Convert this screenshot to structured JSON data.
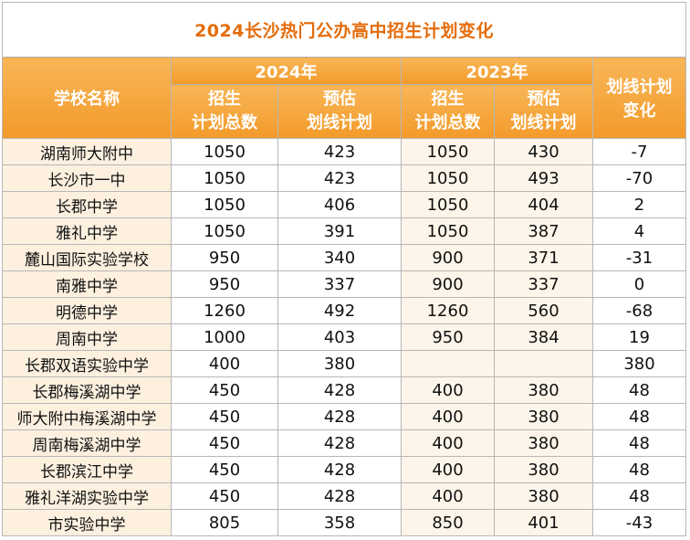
{
  "title": "2024长沙热门公办高中招生计划变化",
  "headers": {
    "school": "学校名称",
    "year_2024": "2024年",
    "year_2023": "2023年",
    "plan_line1": "招生",
    "plan_line2": "计划总数",
    "est_line1": "预估",
    "est_line2": "划线计划",
    "change_line1": "划线计划",
    "change_line2": "变化"
  },
  "rows": [
    {
      "school": "湖南师大附中",
      "plan2024": "1050",
      "est2024": "423",
      "plan2023": "1050",
      "est2023": "430",
      "change": "-7"
    },
    {
      "school": "长沙市一中",
      "plan2024": "1050",
      "est2024": "423",
      "plan2023": "1050",
      "est2023": "493",
      "change": "-70"
    },
    {
      "school": "长郡中学",
      "plan2024": "1050",
      "est2024": "406",
      "plan2023": "1050",
      "est2023": "404",
      "change": "2"
    },
    {
      "school": "雅礼中学",
      "plan2024": "1050",
      "est2024": "391",
      "plan2023": "1050",
      "est2023": "387",
      "change": "4"
    },
    {
      "school": "麓山国际实验学校",
      "plan2024": "950",
      "est2024": "340",
      "plan2023": "900",
      "est2023": "371",
      "change": "-31"
    },
    {
      "school": "南雅中学",
      "plan2024": "950",
      "est2024": "337",
      "plan2023": "900",
      "est2023": "337",
      "change": "0"
    },
    {
      "school": "明德中学",
      "plan2024": "1260",
      "est2024": "492",
      "plan2023": "1260",
      "est2023": "560",
      "change": "-68"
    },
    {
      "school": "周南中学",
      "plan2024": "1000",
      "est2024": "403",
      "plan2023": "950",
      "est2023": "384",
      "change": "19"
    },
    {
      "school": "长郡双语实验中学",
      "plan2024": "400",
      "est2024": "380",
      "plan2023": "",
      "est2023": "",
      "change": "380"
    },
    {
      "school": "长郡梅溪湖中学",
      "plan2024": "450",
      "est2024": "428",
      "plan2023": "400",
      "est2023": "380",
      "change": "48"
    },
    {
      "school": "师大附中梅溪湖中学",
      "plan2024": "450",
      "est2024": "428",
      "plan2023": "400",
      "est2023": "380",
      "change": "48"
    },
    {
      "school": "周南梅溪湖中学",
      "plan2024": "450",
      "est2024": "428",
      "plan2023": "400",
      "est2023": "380",
      "change": "48"
    },
    {
      "school": "长郡滨江中学",
      "plan2024": "450",
      "est2024": "428",
      "plan2023": "400",
      "est2023": "380",
      "change": "48"
    },
    {
      "school": "雅礼洋湖实验中学",
      "plan2024": "450",
      "est2024": "428",
      "plan2023": "400",
      "est2023": "380",
      "change": "48"
    },
    {
      "school": "市实验中学",
      "plan2024": "805",
      "est2024": "358",
      "plan2023": "850",
      "est2023": "401",
      "change": "-43"
    }
  ]
}
